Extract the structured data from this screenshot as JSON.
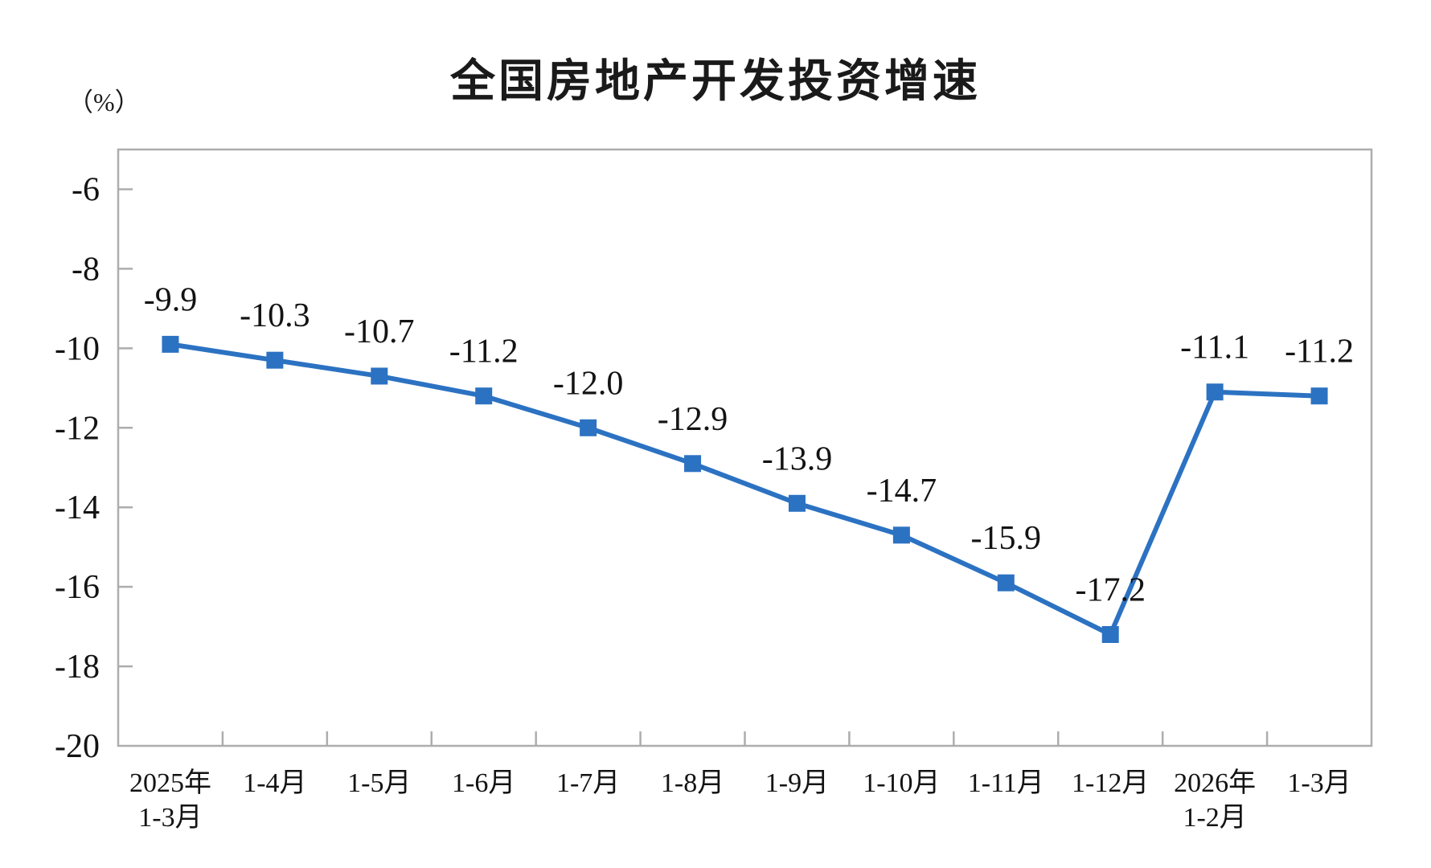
{
  "chart_data": {
    "type": "line",
    "title": "全国房地产开发投资增速",
    "unit_label": "（%）",
    "categories": [
      [
        "2025年",
        "1-3月"
      ],
      [
        "1-4月"
      ],
      [
        "1-5月"
      ],
      [
        "1-6月"
      ],
      [
        "1-7月"
      ],
      [
        "1-8月"
      ],
      [
        "1-9月"
      ],
      [
        "1-10月"
      ],
      [
        "1-11月"
      ],
      [
        "1-12月"
      ],
      [
        "2026年",
        "1-2月"
      ],
      [
        "1-3月"
      ]
    ],
    "series": [
      {
        "name": "全国房地产开发投资增速",
        "values": [
          -9.9,
          -10.3,
          -10.7,
          -11.2,
          -12.0,
          -12.9,
          -13.9,
          -14.7,
          -15.9,
          -17.2,
          -11.1,
          -11.2
        ],
        "labels": [
          "-9.9",
          "-10.3",
          "-10.7",
          "-11.2",
          "-12.0",
          "-12.9",
          "-13.9",
          "-14.7",
          "-15.9",
          "-17.2",
          "-11.1",
          "-11.2"
        ]
      }
    ],
    "y_axis": {
      "min": -20,
      "max": -5,
      "tick_step": 2,
      "tick_labels": [
        "-6",
        "-8",
        "-10",
        "-12",
        "-14",
        "-16",
        "-18",
        "-20"
      ]
    },
    "xlabel": "",
    "ylabel": "（%）",
    "grid": "off",
    "legend": "none",
    "marker": "square",
    "line_color": "#2C72C2",
    "axis_color": "#ADADAD",
    "text_color": "#131313"
  }
}
